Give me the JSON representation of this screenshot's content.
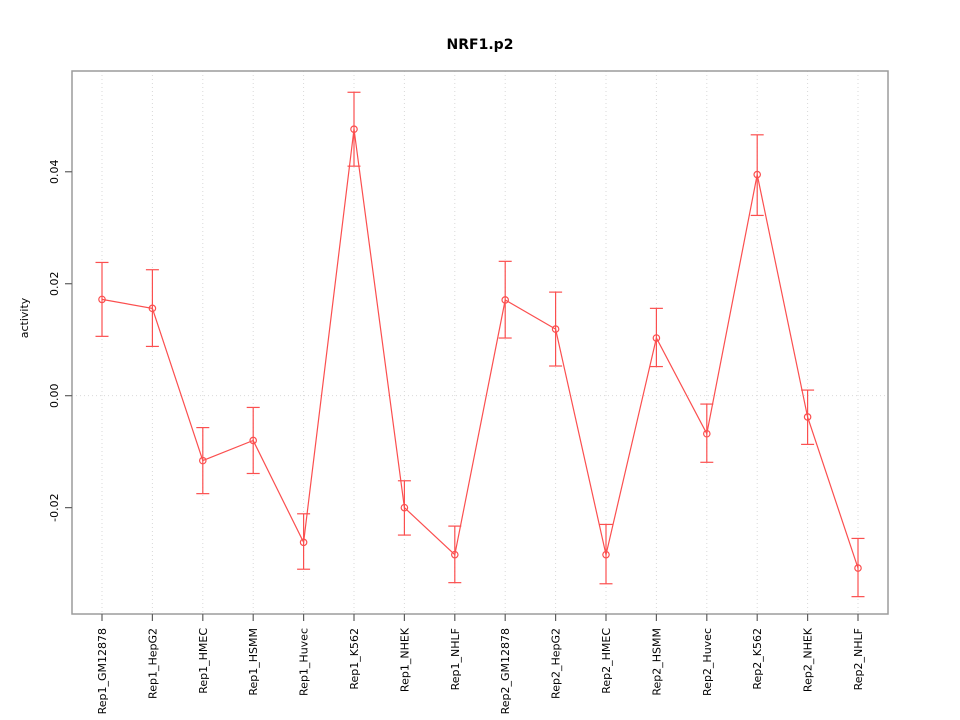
{
  "title": "NRF1.p2",
  "chart_data": {
    "type": "line",
    "title": "NRF1.p2",
    "xlabel": "",
    "ylabel": "activity",
    "categories": [
      "Rep1_GM12878",
      "Rep1_HepG2",
      "Rep1_HMEC",
      "Rep1_HSMM",
      "Rep1_Huvec",
      "Rep1_K562",
      "Rep1_NHEK",
      "Rep1_NHLF",
      "Rep2_GM12878",
      "Rep2_HepG2",
      "Rep2_HMEC",
      "Rep2_HSMM",
      "Rep2_Huvec",
      "Rep2_K562",
      "Rep2_NHEK",
      "Rep2_NHLF"
    ],
    "series": [
      {
        "name": "activity",
        "values": [
          0.0172,
          0.0156,
          -0.0116,
          -0.008,
          -0.0262,
          0.0476,
          -0.02,
          -0.0284,
          0.0171,
          0.0119,
          -0.0284,
          0.0103,
          -0.0068,
          0.0395,
          -0.0038,
          -0.0308
        ],
        "upper": [
          0.0238,
          0.0225,
          -0.0057,
          -0.0021,
          -0.0211,
          0.0542,
          -0.0152,
          -0.0233,
          0.024,
          0.0185,
          -0.023,
          0.0156,
          -0.0015,
          0.0466,
          0.001,
          -0.0255
        ],
        "lower": [
          0.0106,
          0.0088,
          -0.0175,
          -0.0139,
          -0.031,
          0.041,
          -0.0249,
          -0.0334,
          0.0103,
          0.0053,
          -0.0336,
          0.0052,
          -0.0119,
          0.0322,
          -0.0087,
          -0.0359
        ]
      }
    ],
    "ylim": [
      -0.039,
      0.058
    ],
    "yticks": [
      -0.02,
      0,
      0.02,
      0.04
    ],
    "ytick_labels": [
      "-0.02",
      "0.00",
      "0.02",
      "0.04"
    ],
    "legend_position": "none",
    "grid": "dotted vertical line at each category; dotted horizontal line at y=0",
    "marker": "open-circle",
    "error_bars": true,
    "colors": {
      "series_red": "#fb4f4f",
      "grid_gray": "#d9d9d9",
      "box_gray": "#9c9c9c",
      "tick_gray": "#5f5f5f",
      "text_black": "#000000"
    }
  }
}
